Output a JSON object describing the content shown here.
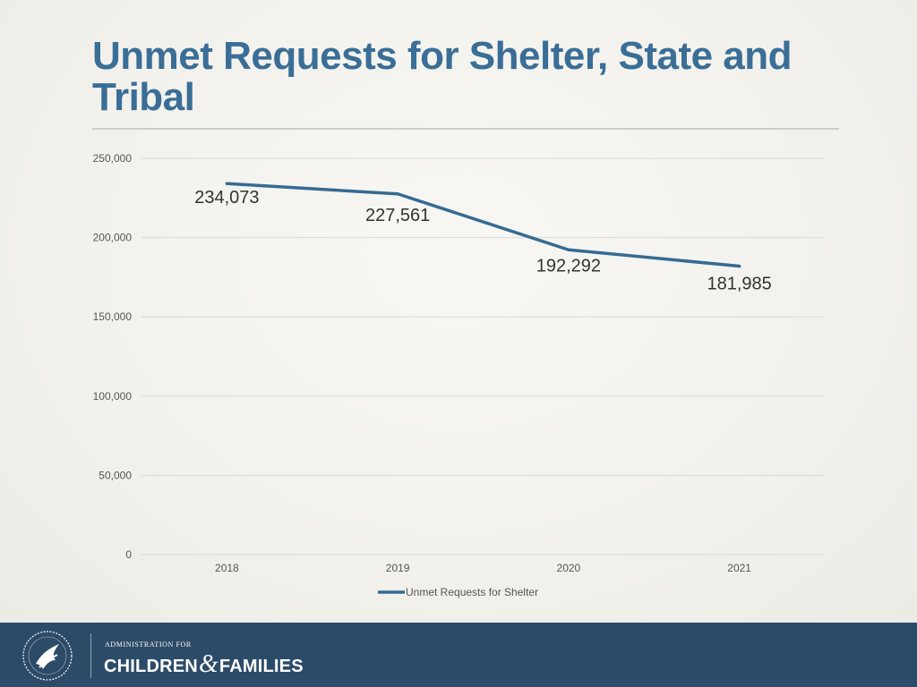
{
  "slide": {
    "title": "Unmet Requests for Shelter, State and Tribal"
  },
  "chart_data": {
    "type": "line",
    "title": "Unmet Requests for Shelter, State and Tribal",
    "categories": [
      "2018",
      "2019",
      "2020",
      "2021"
    ],
    "series": [
      {
        "name": "Unmet Requests for Shelter",
        "values": [
          234073,
          227561,
          192292,
          181985
        ],
        "labels": [
          "234,073",
          "227,561",
          "192,292",
          "181,985"
        ]
      }
    ],
    "yticks": [
      0,
      50000,
      100000,
      150000,
      200000,
      250000
    ],
    "ytick_labels": [
      "0",
      "50,000",
      "100,000",
      "150,000",
      "200,000",
      "250,000"
    ],
    "ylim": [
      0,
      250000
    ],
    "xlabel": "",
    "ylabel": "",
    "grid": true,
    "legend_position": "bottom",
    "line_color": "#356b94"
  },
  "footer": {
    "agency_small": "ADMINISTRATION FOR",
    "agency_word1": "CHILDREN",
    "agency_amp": "&",
    "agency_word2": "FAMILIES"
  }
}
